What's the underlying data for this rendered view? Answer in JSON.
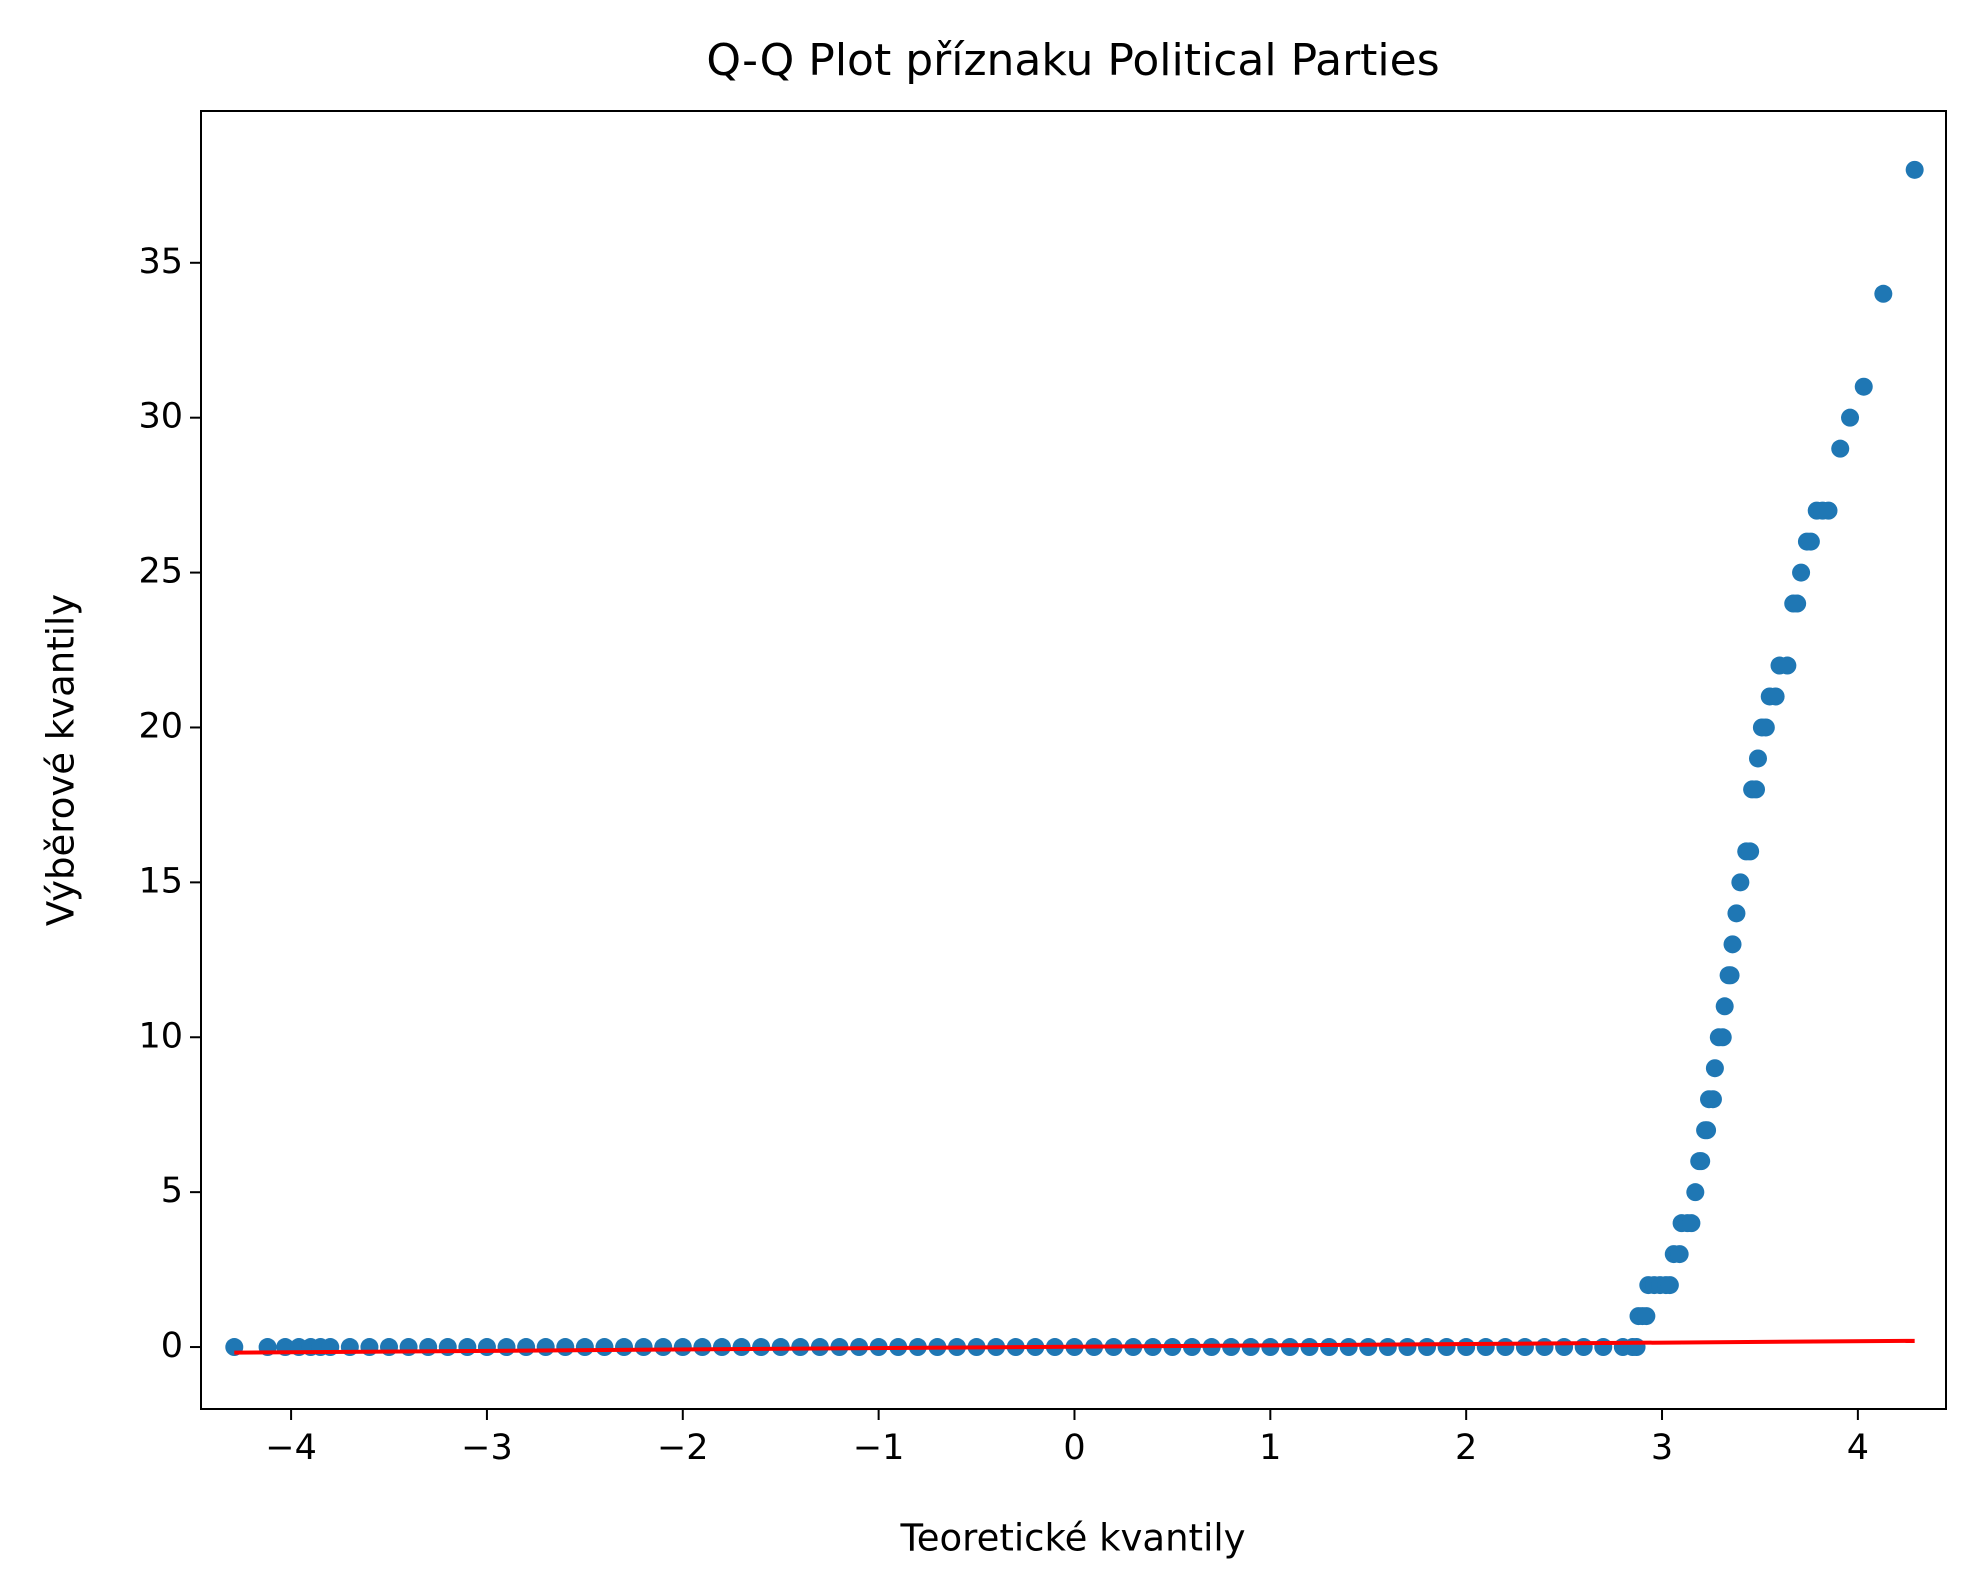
{
  "chart_data": {
    "type": "scatter",
    "title": "Q-Q Plot příznaku Political Parties",
    "x_label": "Teoretické kvantily",
    "y_label": "Výběrové kvantily",
    "xlim": [
      -4.46,
      4.45
    ],
    "ylim": [
      -2,
      39.9
    ],
    "xticks": [
      {
        "value": -4,
        "label": "−4"
      },
      {
        "value": -3,
        "label": "−3"
      },
      {
        "value": -2,
        "label": "−2"
      },
      {
        "value": -1,
        "label": "−1"
      },
      0,
      1,
      2,
      3,
      4
    ],
    "yticks": [
      0,
      5,
      10,
      15,
      20,
      25,
      30,
      35
    ],
    "series": [
      {
        "color": "#1f77b4",
        "x": [
          -4.29,
          -4.12,
          -4.03,
          -3.96,
          -3.9,
          -3.85,
          -3.8,
          -3.7,
          -3.6,
          -3.5,
          -3.4,
          -3.3,
          -3.2,
          -3.1,
          -3.0,
          -2.9,
          -2.8,
          -2.7,
          -2.6,
          -2.5,
          -2.4,
          -2.3,
          -2.2,
          -2.1,
          -2.0,
          -1.9,
          -1.8,
          -1.7,
          -1.6,
          -1.5,
          -1.4,
          -1.3,
          -1.2,
          -1.1,
          -1.0,
          -0.9,
          -0.8,
          -0.7,
          -0.6,
          -0.5,
          -0.4,
          -0.3,
          -0.2,
          -0.1,
          0.0,
          0.1,
          0.2,
          0.3,
          0.4,
          0.5,
          0.6,
          0.7,
          0.8,
          0.9,
          1.0,
          1.1,
          1.2,
          1.3,
          1.4,
          1.5,
          1.6,
          1.7,
          1.8,
          1.9,
          2.0,
          2.1,
          2.2,
          2.3,
          2.4,
          2.5,
          2.6,
          2.7,
          2.8,
          2.85,
          2.87
        ],
        "values": [
          0,
          0,
          0,
          0,
          0,
          0,
          0,
          0,
          0,
          0,
          0,
          0,
          0,
          0,
          0,
          0,
          0,
          0,
          0,
          0,
          0,
          0,
          0,
          0,
          0,
          0,
          0,
          0,
          0,
          0,
          0,
          0,
          0,
          0,
          0,
          0,
          0,
          0,
          0,
          0,
          0,
          0,
          0,
          0,
          0,
          0,
          0,
          0,
          0,
          0,
          0,
          0,
          0,
          0,
          0,
          0,
          0,
          0,
          0,
          0,
          0,
          0,
          0,
          0,
          0,
          0,
          0,
          0,
          0,
          0,
          0,
          0,
          0,
          0,
          0
        ]
      },
      {
        "color": "#1f77b4",
        "x": [
          2.88,
          2.9,
          2.92,
          2.93,
          2.96,
          2.99,
          3.02,
          3.04,
          3.06,
          3.09,
          3.1,
          3.13,
          3.15,
          3.17,
          3.19,
          3.2,
          3.22,
          3.23,
          3.24,
          3.26,
          3.27,
          3.29,
          3.31,
          3.32,
          3.34,
          3.35,
          3.36,
          3.38,
          3.4,
          3.43,
          3.45,
          3.46,
          3.48,
          3.49,
          3.51,
          3.53,
          3.55,
          3.58,
          3.6,
          3.64,
          3.67,
          3.69,
          3.71,
          3.74,
          3.76,
          3.79,
          3.82,
          3.85,
          3.91,
          3.96,
          4.03,
          4.13,
          4.29
        ],
        "values": [
          1,
          1,
          1,
          2,
          2,
          2,
          2,
          2,
          3,
          3,
          4,
          4,
          4,
          5,
          6,
          6,
          7,
          7,
          8,
          8,
          9,
          10,
          10,
          11,
          12,
          12,
          13,
          14,
          15,
          16,
          16,
          18,
          18,
          19,
          20,
          20,
          21,
          21,
          22,
          22,
          24,
          24,
          25,
          26,
          26,
          27,
          27,
          27,
          29,
          30,
          31,
          34,
          38
        ]
      }
    ],
    "fit_line": {
      "x": [
        -4.29,
        4.29
      ],
      "values": [
        -0.18,
        0.2
      ],
      "color": "#ff0000"
    }
  }
}
